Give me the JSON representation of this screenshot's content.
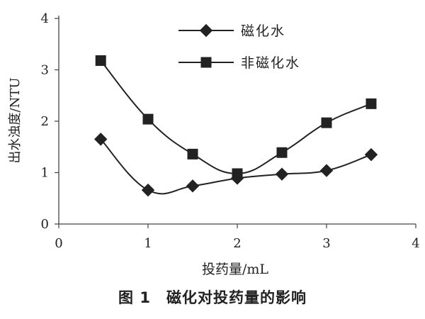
{
  "chart_data": {
    "type": "line",
    "title": "",
    "caption_number": "图 1",
    "caption_text": "磁化对投药量的影响",
    "xlabel": "投药量/mL",
    "ylabel": "出水浊度/NTU",
    "xlim": [
      0,
      4
    ],
    "ylim": [
      0,
      4
    ],
    "xticks": [
      0,
      1,
      2,
      3,
      4
    ],
    "yticks": [
      0,
      1,
      2,
      3,
      4
    ],
    "grid": false,
    "legend_position": "top-center",
    "series": [
      {
        "name": "磁化水",
        "marker": "diamond",
        "color": "#222222",
        "x": [
          0.47,
          1.0,
          1.5,
          2.0,
          2.5,
          3.0,
          3.5
        ],
        "y": [
          1.65,
          0.66,
          0.74,
          0.89,
          0.97,
          1.04,
          1.35
        ]
      },
      {
        "name": "非磁化水",
        "marker": "square",
        "color": "#222222",
        "x": [
          0.47,
          1.0,
          1.5,
          2.0,
          2.5,
          3.0,
          3.5
        ],
        "y": [
          3.18,
          2.04,
          1.36,
          0.98,
          1.39,
          1.97,
          2.34
        ]
      }
    ]
  }
}
